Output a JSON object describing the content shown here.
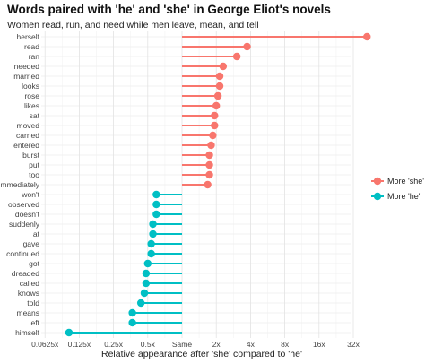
{
  "chart_data": {
    "type": "lollipop",
    "title": "Words paired with 'he' and 'she' in George Eliot's novels",
    "subtitle": "Women read, run, and need while men leave, mean, and tell",
    "xlabel": "Relative appearance after 'she' compared to 'he'",
    "ylabel": "",
    "x_scale": "log2",
    "xlim_log2": [
      -4.2,
      5.6
    ],
    "x_ticks": [
      {
        "log2": -4,
        "label": "0.0625x"
      },
      {
        "log2": -3,
        "label": "0.125x"
      },
      {
        "log2": -2,
        "label": "0.25x"
      },
      {
        "log2": -1,
        "label": "0.5x"
      },
      {
        "log2": 0,
        "label": "Same"
      },
      {
        "log2": 1,
        "label": "2x"
      },
      {
        "log2": 2,
        "label": "4x"
      },
      {
        "log2": 3,
        "label": "8x"
      },
      {
        "log2": 4,
        "label": "16x"
      },
      {
        "log2": 5,
        "label": "32x"
      }
    ],
    "legend": {
      "position": "right",
      "entries": [
        {
          "label": "More 'she'",
          "color": "#F8766D"
        },
        {
          "label": "More 'he'",
          "color": "#00BFC4"
        }
      ]
    },
    "series": [
      {
        "name": "More 'she'",
        "color": "#F8766D",
        "points": [
          {
            "word": "herself",
            "log2_ratio": 5.4
          },
          {
            "word": "read",
            "log2_ratio": 1.9
          },
          {
            "word": "ran",
            "log2_ratio": 1.6
          },
          {
            "word": "needed",
            "log2_ratio": 1.2
          },
          {
            "word": "married",
            "log2_ratio": 1.1
          },
          {
            "word": "looks",
            "log2_ratio": 1.1
          },
          {
            "word": "rose",
            "log2_ratio": 1.05
          },
          {
            "word": "likes",
            "log2_ratio": 1.0
          },
          {
            "word": "sat",
            "log2_ratio": 0.95
          },
          {
            "word": "moved",
            "log2_ratio": 0.95
          },
          {
            "word": "carried",
            "log2_ratio": 0.9
          },
          {
            "word": "entered",
            "log2_ratio": 0.85
          },
          {
            "word": "burst",
            "log2_ratio": 0.8
          },
          {
            "word": "put",
            "log2_ratio": 0.8
          },
          {
            "word": "too",
            "log2_ratio": 0.8
          },
          {
            "word": "immediately",
            "log2_ratio": 0.75
          }
        ]
      },
      {
        "name": "More 'he'",
        "color": "#00BFC4",
        "points": [
          {
            "word": "won't",
            "log2_ratio": -0.75
          },
          {
            "word": "observed",
            "log2_ratio": -0.75
          },
          {
            "word": "doesn't",
            "log2_ratio": -0.75
          },
          {
            "word": "suddenly",
            "log2_ratio": -0.85
          },
          {
            "word": "at",
            "log2_ratio": -0.85
          },
          {
            "word": "gave",
            "log2_ratio": -0.9
          },
          {
            "word": "continued",
            "log2_ratio": -0.9
          },
          {
            "word": "got",
            "log2_ratio": -1.0
          },
          {
            "word": "dreaded",
            "log2_ratio": -1.05
          },
          {
            "word": "called",
            "log2_ratio": -1.05
          },
          {
            "word": "knows",
            "log2_ratio": -1.1
          },
          {
            "word": "told",
            "log2_ratio": -1.2
          },
          {
            "word": "means",
            "log2_ratio": -1.45
          },
          {
            "word": "left",
            "log2_ratio": -1.45
          },
          {
            "word": "himself",
            "log2_ratio": -3.3
          }
        ]
      }
    ]
  }
}
